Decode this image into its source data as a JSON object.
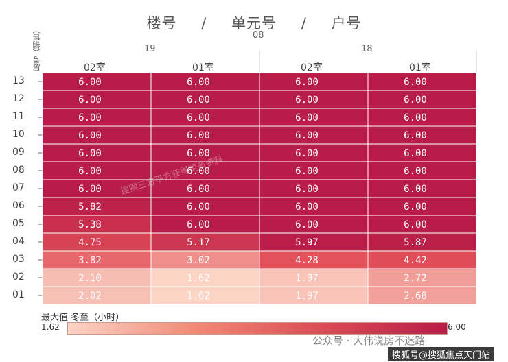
{
  "header": {
    "building_label": "楼号",
    "unit_label": "单元号",
    "room_label": "户号",
    "separator": "/"
  },
  "axis": {
    "floor_title": "层号（销售）"
  },
  "legend": {
    "title": "最大值 冬至（小时）",
    "min": "1.62",
    "max": "6.00"
  },
  "watermarks": {
    "overlay": "搜索三方平方获得更多资料",
    "footer": "公众号 · 大伟说房不迷路",
    "footer2": "搜狐号@搜狐焦点天门站"
  },
  "chart_data": {
    "type": "heatmap",
    "building": "08",
    "units": [
      "19",
      "18"
    ],
    "columns": [
      {
        "unit": "19",
        "room": "02室"
      },
      {
        "unit": "19",
        "room": "01室"
      },
      {
        "unit": "18",
        "room": "02室"
      },
      {
        "unit": "18",
        "room": "01室"
      }
    ],
    "floors": [
      "13",
      "12",
      "11",
      "10",
      "09",
      "08",
      "07",
      "06",
      "05",
      "04",
      "03",
      "02",
      "01"
    ],
    "values": [
      [
        6.0,
        6.0,
        6.0,
        6.0
      ],
      [
        6.0,
        6.0,
        6.0,
        6.0
      ],
      [
        6.0,
        6.0,
        6.0,
        6.0
      ],
      [
        6.0,
        6.0,
        6.0,
        6.0
      ],
      [
        6.0,
        6.0,
        6.0,
        6.0
      ],
      [
        6.0,
        6.0,
        6.0,
        6.0
      ],
      [
        6.0,
        6.0,
        6.0,
        6.0
      ],
      [
        5.82,
        6.0,
        6.0,
        6.0
      ],
      [
        5.38,
        6.0,
        6.0,
        6.0
      ],
      [
        4.75,
        5.17,
        5.97,
        5.87
      ],
      [
        3.82,
        3.02,
        4.28,
        4.42
      ],
      [
        2.1,
        1.62,
        1.97,
        2.72
      ],
      [
        2.02,
        1.62,
        1.97,
        2.68
      ]
    ],
    "value_range": [
      1.62,
      6.0
    ],
    "colors": {
      "low": "#fbd4c6",
      "mid": "#e4525a",
      "high": "#b81c48"
    }
  }
}
